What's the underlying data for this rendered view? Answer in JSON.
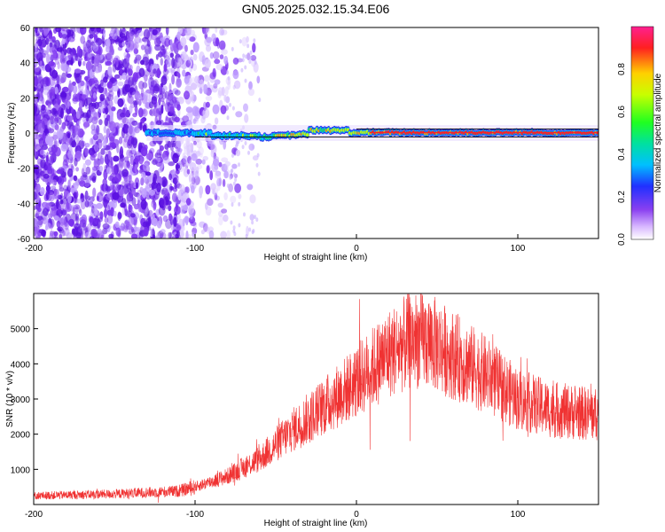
{
  "title": "GN05.2025.032.15.34.E06",
  "chart_data": [
    {
      "type": "heatmap",
      "xlabel": "Height of straight line (km)",
      "ylabel": "Frequency (Hz)",
      "xlim": [
        -200,
        150
      ],
      "ylim": [
        -60,
        60
      ],
      "x_ticks": [
        -200,
        -100,
        0,
        100
      ],
      "y_ticks": [
        -60,
        -40,
        -20,
        0,
        20,
        40,
        60
      ],
      "colorbar": {
        "label": "Normalized spectral amplitude",
        "range": [
          0.0,
          1.0
        ],
        "ticks": [
          0.0,
          0.2,
          0.4,
          0.6,
          0.8
        ]
      },
      "ridge_frequency_hz": 0,
      "ridge_start_km": -130
    },
    {
      "type": "line",
      "xlabel": "Height of straight line (km)",
      "ylabel": "SNR (10 * v/v)",
      "xlim": [
        -200,
        150
      ],
      "ylim": [
        0,
        6000
      ],
      "x_ticks": [
        -200,
        -100,
        0,
        100
      ],
      "y_ticks": [
        1000,
        2000,
        3000,
        4000,
        5000
      ],
      "color": "#f03232",
      "envelope": {
        "x": [
          -200,
          -150,
          -110,
          -100,
          -80,
          -60,
          -40,
          -20,
          0,
          20,
          35,
          45,
          60,
          80,
          100,
          120,
          150
        ],
        "y": [
          250,
          300,
          380,
          500,
          800,
          1300,
          2100,
          2800,
          3500,
          4300,
          4700,
          4650,
          4250,
          3700,
          3000,
          2700,
          2550
        ]
      }
    }
  ]
}
